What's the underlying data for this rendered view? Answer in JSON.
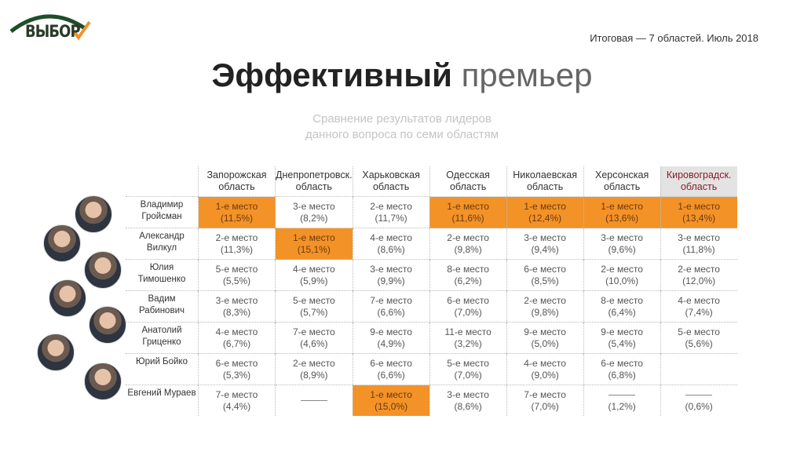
{
  "logo": {
    "text": "ВЫБОР",
    "colors": {
      "arc": "#1f4d2a",
      "check": "#f39227"
    }
  },
  "header": {
    "caption": "Итоговая — 7 областей. Июль 2018"
  },
  "title": {
    "bold": "Эффективный",
    "light": "премьер"
  },
  "subtitle": {
    "line1": "Сравнение результатов лидеров",
    "line2": "данного вопроса по семи областям"
  },
  "colors": {
    "highlight": "#f39227",
    "header_highlight": "#e3e3e3"
  },
  "columns": [
    {
      "l1": "Запорожская",
      "l2": "область"
    },
    {
      "l1": "Днепропетровск.",
      "l2": "область"
    },
    {
      "l1": "Харьковская",
      "l2": "область"
    },
    {
      "l1": "Одесская",
      "l2": "область"
    },
    {
      "l1": "Николаевская",
      "l2": "область"
    },
    {
      "l1": "Херсонская",
      "l2": "область"
    },
    {
      "l1": "Кировоградск.",
      "l2": "область",
      "highlighted": true
    }
  ],
  "rows": [
    {
      "name1": "Владимир",
      "name2": "Гройсман",
      "cells": [
        {
          "place": "1-е место",
          "pct": "(11,5%)",
          "win": true
        },
        {
          "place": "3-е место",
          "pct": "(8,2%)"
        },
        {
          "place": "2-е место",
          "pct": "(11,7%)"
        },
        {
          "place": "1-е место",
          "pct": "(11,6%)",
          "win": true
        },
        {
          "place": "1-е место",
          "pct": "(12,4%)",
          "win": true
        },
        {
          "place": "1-е место",
          "pct": "(13,6%)",
          "win": true
        },
        {
          "place": "1-е место",
          "pct": "(13,4%)",
          "win": true
        }
      ]
    },
    {
      "name1": "Александр",
      "name2": "Вилкул",
      "cells": [
        {
          "place": "2-е место",
          "pct": "(11,3%)"
        },
        {
          "place": "1-е место",
          "pct": "(15,1%)",
          "win": true
        },
        {
          "place": "4-е место",
          "pct": "(8,6%)"
        },
        {
          "place": "2-е место",
          "pct": "(9,8%)"
        },
        {
          "place": "3-е место",
          "pct": "(9,4%)"
        },
        {
          "place": "3-е место",
          "pct": "(9,6%)"
        },
        {
          "place": "3-е место",
          "pct": "(11,8%)"
        }
      ]
    },
    {
      "name1": "Юлия",
      "name2": "Тимошенко",
      "cells": [
        {
          "place": "5-е место",
          "pct": "(5,5%)"
        },
        {
          "place": "4-е место",
          "pct": "(5,9%)"
        },
        {
          "place": "3-е место",
          "pct": "(9,9%)"
        },
        {
          "place": "8-е место",
          "pct": "(6,2%)"
        },
        {
          "place": "6-е место",
          "pct": "(8,5%)"
        },
        {
          "place": "2-е место",
          "pct": "(10,0%)"
        },
        {
          "place": "2-е место",
          "pct": "(12,0%)"
        }
      ]
    },
    {
      "name1": "Вадим",
      "name2": "Рабинович",
      "cells": [
        {
          "place": "3-е место",
          "pct": "(8,3%)"
        },
        {
          "place": "5-е место",
          "pct": "(5,7%)"
        },
        {
          "place": "7-е место",
          "pct": "(6,6%)"
        },
        {
          "place": "6-е место",
          "pct": "(7,0%)"
        },
        {
          "place": "2-е место",
          "pct": "(9,8%)"
        },
        {
          "place": "8-е место",
          "pct": "(6,4%)"
        },
        {
          "place": "4-е место",
          "pct": "(7,4%)"
        }
      ]
    },
    {
      "name1": "Анатолий",
      "name2": "Гриценко",
      "cells": [
        {
          "place": "4-е место",
          "pct": "(6,7%)"
        },
        {
          "place": "7-е место",
          "pct": "(4,6%)"
        },
        {
          "place": "9-е место",
          "pct": "(4,9%)"
        },
        {
          "place": "11-е место",
          "pct": "(3,2%)"
        },
        {
          "place": "9-е место",
          "pct": "(5,0%)"
        },
        {
          "place": "9-е место",
          "pct": "(5,4%)"
        },
        {
          "place": "5-е место",
          "pct": "(5,6%)"
        }
      ]
    },
    {
      "name1": "Юрий Бойко",
      "name2": "",
      "cells": [
        {
          "place": "6-е место",
          "pct": "(5,3%)"
        },
        {
          "place": "2-е место",
          "pct": "(8,9%)"
        },
        {
          "place": "6-е место",
          "pct": "(6,6%)"
        },
        {
          "place": "5-е место",
          "pct": "(7,0%)"
        },
        {
          "place": "4-е место",
          "pct": "(9,0%)"
        },
        {
          "place": "6-е место",
          "pct": "(6,8%)"
        },
        {
          "place": "",
          "pct": ""
        }
      ]
    },
    {
      "name1": "Евгений Мураев",
      "name2": "",
      "cells": [
        {
          "place": "7-е место",
          "pct": "(4,4%)"
        },
        {
          "place": "—",
          "pct": "",
          "dash": true
        },
        {
          "place": "1-е место",
          "pct": "(15,0%)",
          "win": true
        },
        {
          "place": "3-е место",
          "pct": "(8,6%)"
        },
        {
          "place": "7-е место",
          "pct": "(7,0%)"
        },
        {
          "place": "—",
          "pct": "(1,2%)",
          "dash": true
        },
        {
          "place": "—",
          "pct": "(0,6%)",
          "dash": true
        }
      ]
    }
  ]
}
